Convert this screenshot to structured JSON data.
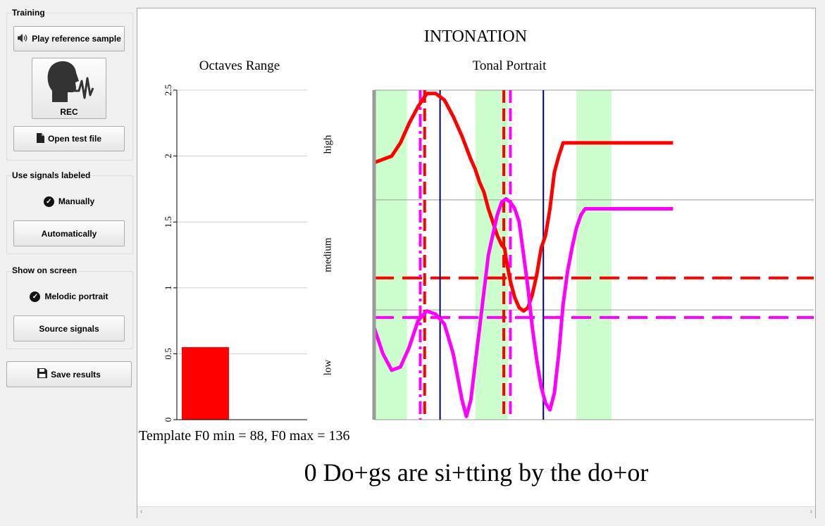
{
  "sidebar": {
    "training": {
      "title": "Training",
      "play_button": "Play reference sample",
      "rec_button": "REC",
      "open_button": "Open test file"
    },
    "signals": {
      "title": "Use signals labeled",
      "manual_option": "Manually",
      "auto_button": "Automatically"
    },
    "show": {
      "title": "Show on screen",
      "melodic_option": "Melodic portrait",
      "source_button": "Source signals"
    },
    "save_button": "Save results"
  },
  "main": {
    "title": "INTONATION",
    "template_info": "Template F0 min = 88, F0 max = 136",
    "phrase": "0 Do+gs are si+tting by the do+or"
  },
  "chart_data": [
    {
      "type": "bar",
      "title": "Octaves Range",
      "categories": [
        ""
      ],
      "values": [
        0.55
      ],
      "ylim": [
        0,
        2.5
      ],
      "yticks": [
        "0",
        "0.5",
        "1",
        "1.5",
        "2",
        "2.5"
      ],
      "grid": true,
      "color": "#ff0000"
    },
    {
      "type": "line",
      "title": "Tonal Portrait",
      "xlim": [
        0,
        100
      ],
      "ylim": [
        0,
        100
      ],
      "band_labels": [
        "high",
        "medium",
        "low"
      ],
      "band_boundaries": [
        33.3,
        66.7
      ],
      "green_regions": [
        [
          0,
          7.5
        ],
        [
          23,
          30.5
        ],
        [
          46,
          54
        ]
      ],
      "vertical_lines": [
        {
          "x": 10.5,
          "color": "#ff00ff",
          "style": "dashdot"
        },
        {
          "x": 11.5,
          "color": "#ff0000",
          "style": "dashed"
        },
        {
          "x": 15,
          "color": "#00006e",
          "style": "solid"
        },
        {
          "x": 29.5,
          "color": "#ff0000",
          "style": "dashed"
        },
        {
          "x": 31,
          "color": "#ff00ff",
          "style": "dashed"
        },
        {
          "x": 38.5,
          "color": "#00006e",
          "style": "solid"
        }
      ],
      "horizontal_lines": [
        {
          "y": 43,
          "color": "#ff0000"
        },
        {
          "y": 31,
          "color": "#ff00ff"
        }
      ],
      "series": [
        {
          "color": "#ff0000",
          "points": [
            [
              0,
              78
            ],
            [
              2,
              79
            ],
            [
              4,
              80
            ],
            [
              6,
              84
            ],
            [
              8,
              90
            ],
            [
              10,
              95
            ],
            [
              12,
              99
            ],
            [
              14,
              99
            ],
            [
              16,
              97
            ],
            [
              18,
              92
            ],
            [
              20,
              86
            ],
            [
              22,
              79
            ],
            [
              23,
              76
            ],
            [
              24,
              72
            ],
            [
              25,
              69
            ],
            [
              26,
              64
            ],
            [
              27,
              60
            ],
            [
              28,
              56
            ],
            [
              29,
              53
            ],
            [
              29.7,
              52
            ],
            [
              30,
              49
            ],
            [
              31,
              42
            ],
            [
              32,
              37
            ],
            [
              33,
              34
            ],
            [
              34,
              33
            ],
            [
              35,
              34
            ],
            [
              36,
              38
            ],
            [
              37,
              44
            ],
            [
              38,
              52
            ],
            [
              39,
              56
            ],
            [
              40,
              64
            ],
            [
              41,
              75
            ],
            [
              42,
              80
            ],
            [
              43,
              84
            ],
            [
              44,
              84
            ],
            [
              44,
              84
            ],
            [
              46,
              84
            ],
            [
              47,
              84
            ],
            [
              48,
              84
            ],
            [
              49,
              84
            ],
            [
              50,
              84
            ],
            [
              51,
              84
            ],
            [
              52,
              84
            ],
            [
              53,
              84
            ],
            [
              54,
              84
            ],
            [
              55,
              84
            ],
            [
              56,
              84
            ],
            [
              57,
              84
            ],
            [
              58,
              84
            ],
            [
              59,
              84
            ],
            [
              60,
              84
            ],
            [
              61,
              84
            ],
            [
              62,
              84
            ],
            [
              63,
              84
            ],
            [
              64,
              84
            ],
            [
              65,
              84
            ],
            [
              66,
              84
            ],
            [
              67,
              84
            ],
            [
              68,
              84
            ]
          ]
        },
        {
          "color": "#ff00ff",
          "points": [
            [
              0,
              28
            ],
            [
              2,
              20
            ],
            [
              4,
              15
            ],
            [
              6,
              16
            ],
            [
              8,
              22
            ],
            [
              10,
              30
            ],
            [
              12,
              33
            ],
            [
              14,
              32
            ],
            [
              16,
              29
            ],
            [
              18,
              20
            ],
            [
              20,
              6
            ],
            [
              21,
              1
            ],
            [
              22,
              6
            ],
            [
              24,
              28
            ],
            [
              26,
              50
            ],
            [
              28,
              62
            ],
            [
              29,
              66
            ],
            [
              30,
              67
            ],
            [
              31,
              66
            ],
            [
              32,
              64
            ],
            [
              33,
              60
            ],
            [
              34,
              50
            ],
            [
              35,
              40
            ],
            [
              36,
              28
            ],
            [
              37,
              18
            ],
            [
              38,
              10
            ],
            [
              39,
              5
            ],
            [
              40,
              3
            ],
            [
              41,
              8
            ],
            [
              42,
              20
            ],
            [
              43,
              35
            ],
            [
              44,
              45
            ],
            [
              45,
              52
            ],
            [
              46,
              58
            ],
            [
              47,
              62
            ],
            [
              48,
              64
            ],
            [
              49,
              64
            ],
            [
              50,
              64
            ],
            [
              51,
              64
            ],
            [
              52,
              64
            ],
            [
              53,
              64
            ],
            [
              54,
              64
            ],
            [
              55,
              64
            ],
            [
              56,
              64
            ],
            [
              57,
              64
            ],
            [
              58,
              64
            ],
            [
              59,
              64
            ],
            [
              60,
              64
            ],
            [
              61,
              64
            ],
            [
              62,
              64
            ],
            [
              63,
              64
            ],
            [
              64,
              64
            ],
            [
              65,
              64
            ],
            [
              66,
              64
            ],
            [
              67,
              64
            ],
            [
              68,
              64
            ]
          ]
        }
      ]
    }
  ]
}
